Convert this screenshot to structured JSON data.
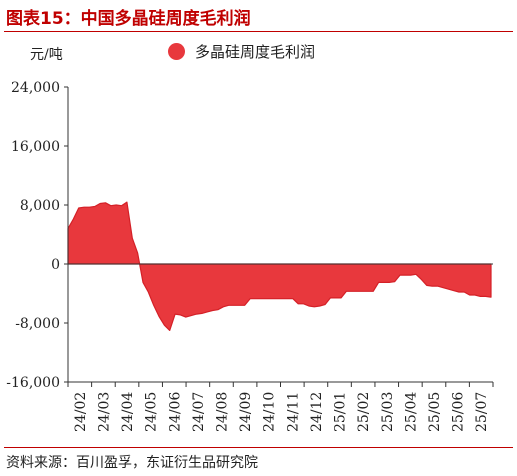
{
  "header": {
    "title": "图表15：中国多晶硅周度毛利润"
  },
  "footer": {
    "source": "资料来源：百川盈孚，东证衍生品研究院"
  },
  "colors": {
    "title": "#c00000",
    "fill": "#e8383d",
    "stroke": "#d42027",
    "axis": "#333333"
  },
  "chart_data": {
    "type": "area",
    "ylabel": "元/吨",
    "ylim": [
      -16000,
      24000
    ],
    "yticks": [
      -16000,
      -8000,
      0,
      8000,
      16000,
      24000
    ],
    "ytick_labels": [
      "-16,000",
      "-8,000",
      "0",
      "8,000",
      "16,000",
      "24,000"
    ],
    "xtick_labels": [
      "24/02",
      "24/03",
      "24/04",
      "24/05",
      "24/06",
      "24/07",
      "24/08",
      "24/09",
      "24/10",
      "24/11",
      "24/12",
      "25/01",
      "25/02",
      "25/03",
      "25/04",
      "25/05",
      "25/06",
      "25/07"
    ],
    "legend": {
      "position": "top",
      "entries": [
        "多晶硅周度毛利润"
      ]
    },
    "series": [
      {
        "name": "多晶硅周度毛利润",
        "values": [
          4800,
          6100,
          7600,
          7700,
          7700,
          7800,
          8200,
          8300,
          7900,
          8000,
          7900,
          8400,
          3500,
          1500,
          -2500,
          -3800,
          -5600,
          -7100,
          -8300,
          -9000,
          -6800,
          -6900,
          -7200,
          -7000,
          -6800,
          -6700,
          -6500,
          -6300,
          -6200,
          -5800,
          -5600,
          -5600,
          -5600,
          -5600,
          -4700,
          -4700,
          -4700,
          -4700,
          -4700,
          -4700,
          -4700,
          -4700,
          -4700,
          -5400,
          -5400,
          -5700,
          -5800,
          -5700,
          -5500,
          -4600,
          -4600,
          -4600,
          -3700,
          -3700,
          -3700,
          -3700,
          -3700,
          -3700,
          -2500,
          -2500,
          -2500,
          -2400,
          -1500,
          -1500,
          -1500,
          -1400,
          -2100,
          -2900,
          -3000,
          -3000,
          -3200,
          -3400,
          -3600,
          -3800,
          -3800,
          -4200,
          -4200,
          -4400,
          -4400,
          -4500
        ]
      }
    ]
  }
}
